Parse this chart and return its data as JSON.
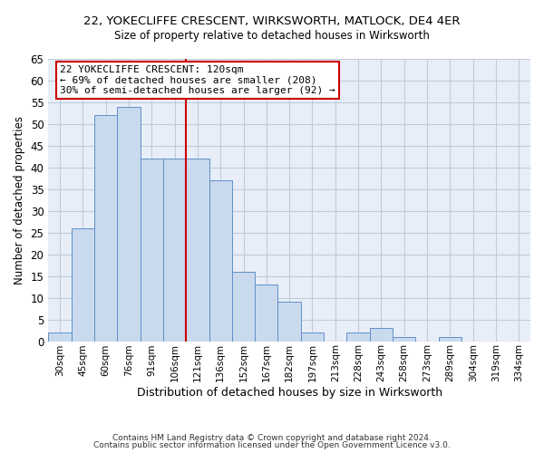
{
  "title": "22, YOKECLIFFE CRESCENT, WIRKSWORTH, MATLOCK, DE4 4ER",
  "subtitle": "Size of property relative to detached houses in Wirksworth",
  "xlabel": "Distribution of detached houses by size in Wirksworth",
  "ylabel": "Number of detached properties",
  "bar_labels": [
    "30sqm",
    "45sqm",
    "60sqm",
    "76sqm",
    "91sqm",
    "106sqm",
    "121sqm",
    "136sqm",
    "152sqm",
    "167sqm",
    "182sqm",
    "197sqm",
    "213sqm",
    "228sqm",
    "243sqm",
    "258sqm",
    "273sqm",
    "289sqm",
    "304sqm",
    "319sqm",
    "334sqm"
  ],
  "bar_values": [
    2,
    26,
    52,
    54,
    42,
    42,
    42,
    37,
    16,
    13,
    9,
    2,
    0,
    2,
    3,
    1,
    0,
    1,
    0,
    0,
    0
  ],
  "bar_color": "#c9d9ee",
  "bar_edge_color": "#6090c8",
  "vline_x_index": 6,
  "vline_color": "#cc0000",
  "annotation_text": "22 YOKECLIFFE CRESCENT: 120sqm\n← 69% of detached houses are smaller (208)\n30% of semi-detached houses are larger (92) →",
  "annotation_box_color": "#ffffff",
  "annotation_box_edge": "#cc0000",
  "ylim": [
    0,
    65
  ],
  "yticks": [
    0,
    5,
    10,
    15,
    20,
    25,
    30,
    35,
    40,
    45,
    50,
    55,
    60,
    65
  ],
  "footer1": "Contains HM Land Registry data © Crown copyright and database right 2024.",
  "footer2": "Contains public sector information licensed under the Open Government Licence v3.0.",
  "background_color": "#ffffff",
  "plot_bg_color": "#e8eef8",
  "grid_color": "#c0ccd8"
}
